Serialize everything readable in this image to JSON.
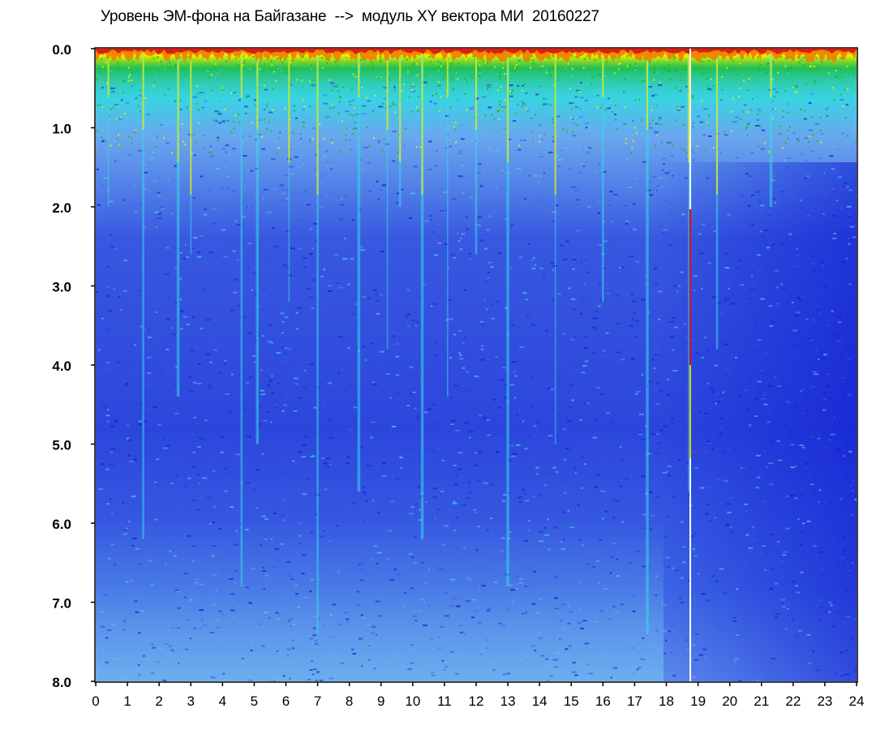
{
  "chart_data": {
    "type": "heatmap",
    "title": "Уровень ЭМ-фона на Байгазане  -->  модуль XY вектора МИ  20160227",
    "xlabel": "",
    "ylabel": "",
    "xlim": [
      0,
      24
    ],
    "ylim": [
      0,
      8.0
    ],
    "y_axis_inverted": true,
    "x_ticks": [
      "0",
      "1",
      "2",
      "3",
      "4",
      "5",
      "6",
      "7",
      "8",
      "9",
      "10",
      "11",
      "12",
      "13",
      "14",
      "15",
      "16",
      "17",
      "18",
      "19",
      "20",
      "21",
      "22",
      "23",
      "24"
    ],
    "y_ticks": [
      "0.0",
      "1.0",
      "2.0",
      "3.0",
      "4.0",
      "5.0",
      "6.0",
      "7.0",
      "8.0"
    ],
    "grid": false,
    "colormap": [
      "#0a1fd4",
      "#3a5ae8",
      "#7fa0f0",
      "#38d8e8",
      "#18b818",
      "#f0f000",
      "#f08000",
      "#e01010"
    ],
    "vertical_streaks_hours": [
      0.4,
      1.5,
      2.6,
      3.0,
      4.6,
      5.1,
      6.1,
      7.0,
      8.3,
      9.2,
      9.6,
      10.3,
      11.1,
      12.0,
      13.0,
      14.5,
      16.0,
      17.4,
      18.7,
      19.6,
      21.3
    ]
  }
}
